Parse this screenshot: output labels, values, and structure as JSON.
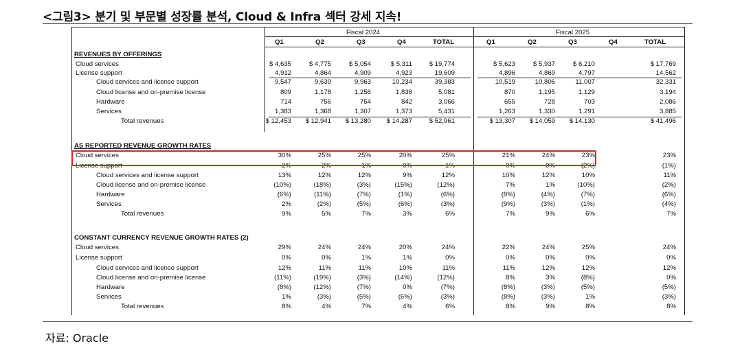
{
  "title": "<그림3> 분기 및 부문별 성장률 분석, Cloud & Infra 섹터 강세 지속!",
  "source": "자료: Oracle",
  "fiscal_headers": [
    "Fiscal 2024",
    "Fiscal 2025"
  ],
  "columns": [
    "Q1",
    "Q2",
    "Q3",
    "Q4",
    "TOTAL",
    "Q1",
    "Q2",
    "Q3",
    "Q4",
    "TOTAL"
  ],
  "sections": [
    {
      "heading": "REVENUES BY OFFERINGS",
      "rows": [
        {
          "label": "Cloud services",
          "indent": 0,
          "values": [
            "$ 4,635",
            "$ 4,775",
            "$ 5,054",
            "$ 5,311",
            "$ 19,774",
            "$ 5,623",
            "$ 5,937",
            "$ 6,210",
            "",
            "$ 17,769"
          ]
        },
        {
          "label": "License support",
          "indent": 0,
          "values": [
            "4,912",
            "4,864",
            "4,909",
            "4,923",
            "19,609",
            "4,896",
            "4,869",
            "4,797",
            "",
            "14,562"
          ]
        },
        {
          "label": "Cloud services and license support",
          "indent": 1,
          "values": [
            "9,547",
            "9,639",
            "9,963",
            "10,234",
            "39,383",
            "10,519",
            "10,806",
            "11,007",
            "",
            "32,331"
          ]
        },
        {
          "label": "Cloud license and on-premise license",
          "indent": 1,
          "values": [
            "809",
            "1,178",
            "1,256",
            "1,838",
            "5,081",
            "870",
            "1,195",
            "1,129",
            "",
            "3,194"
          ]
        },
        {
          "label": "Hardware",
          "indent": 1,
          "values": [
            "714",
            "756",
            "754",
            "842",
            "3,066",
            "655",
            "728",
            "703",
            "",
            "2,086"
          ]
        },
        {
          "label": "Services",
          "indent": 1,
          "values": [
            "1,383",
            "1,368",
            "1,307",
            "1,373",
            "5,431",
            "1,263",
            "1,330",
            "1,291",
            "",
            "3,885"
          ]
        },
        {
          "label": "Total revenues",
          "indent": 2,
          "values": [
            "$ 12,453",
            "$ 12,941",
            "$ 13,280",
            "$ 14,287",
            "$ 52,961",
            "$ 13,307",
            "$ 14,059",
            "$ 14,130",
            "",
            "$ 41,496"
          ]
        }
      ]
    },
    {
      "heading": "AS REPORTED REVENUE GROWTH RATES",
      "rows": [
        {
          "label": "Cloud services",
          "indent": 0,
          "values": [
            "30%",
            "25%",
            "25%",
            "20%",
            "25%",
            "21%",
            "24%",
            "23%",
            "",
            "23%"
          ]
        },
        {
          "label": "License support",
          "indent": 0,
          "values": [
            "2%",
            "2%",
            "1%",
            "0%",
            "1%",
            "0%",
            "0%",
            "(2%)",
            "",
            "(1%)"
          ]
        },
        {
          "label": "Cloud services and license support",
          "indent": 1,
          "values": [
            "13%",
            "12%",
            "12%",
            "9%",
            "12%",
            "10%",
            "12%",
            "10%",
            "",
            "11%"
          ]
        },
        {
          "label": "Cloud license and on-premise license",
          "indent": 1,
          "values": [
            "(10%)",
            "(18%)",
            "(3%)",
            "(15%)",
            "(12%)",
            "7%",
            "1%",
            "(10%)",
            "",
            "(2%)"
          ]
        },
        {
          "label": "Hardware",
          "indent": 1,
          "values": [
            "(6%)",
            "(11%)",
            "(7%)",
            "(1%)",
            "(6%)",
            "(8%)",
            "(4%)",
            "(7%)",
            "",
            "(6%)"
          ]
        },
        {
          "label": "Services",
          "indent": 1,
          "values": [
            "2%",
            "(2%)",
            "(5%)",
            "(6%)",
            "(3%)",
            "(9%)",
            "(3%)",
            "(1%)",
            "",
            "(4%)"
          ]
        },
        {
          "label": "Total revenues",
          "indent": 2,
          "values": [
            "9%",
            "5%",
            "7%",
            "3%",
            "6%",
            "7%",
            "9%",
            "6%",
            "",
            "7%"
          ]
        }
      ]
    },
    {
      "heading": "CONSTANT CURRENCY REVENUE GROWTH RATES (2)",
      "rows": [
        {
          "label": "Cloud services",
          "indent": 0,
          "values": [
            "29%",
            "24%",
            "24%",
            "20%",
            "24%",
            "22%",
            "24%",
            "25%",
            "",
            "24%"
          ]
        },
        {
          "label": "License support",
          "indent": 0,
          "values": [
            "0%",
            "0%",
            "1%",
            "1%",
            "0%",
            "0%",
            "0%",
            "0%",
            "",
            "0%"
          ]
        },
        {
          "label": "Cloud services and license support",
          "indent": 1,
          "values": [
            "12%",
            "11%",
            "11%",
            "10%",
            "11%",
            "11%",
            "12%",
            "12%",
            "",
            "12%"
          ]
        },
        {
          "label": "Cloud license and on-premise license",
          "indent": 1,
          "values": [
            "(11%)",
            "(19%)",
            "(3%)",
            "(14%)",
            "(12%)",
            "8%",
            "3%",
            "(8%)",
            "",
            "0%"
          ]
        },
        {
          "label": "Hardware",
          "indent": 1,
          "values": [
            "(8%)",
            "(12%)",
            "(7%)",
            "0%",
            "(7%)",
            "(8%)",
            "(3%)",
            "(5%)",
            "",
            "(5%)"
          ]
        },
        {
          "label": "Services",
          "indent": 1,
          "values": [
            "1%",
            "(3%)",
            "(5%)",
            "(6%)",
            "(3%)",
            "(8%)",
            "(3%)",
            "1%",
            "",
            "(3%)"
          ]
        },
        {
          "label": "Total revenues",
          "indent": 2,
          "values": [
            "8%",
            "4%",
            "7%",
            "4%",
            "6%",
            "8%",
            "9%",
            "8%",
            "",
            "8%"
          ]
        }
      ]
    }
  ],
  "highlight_color": "#d9242a"
}
